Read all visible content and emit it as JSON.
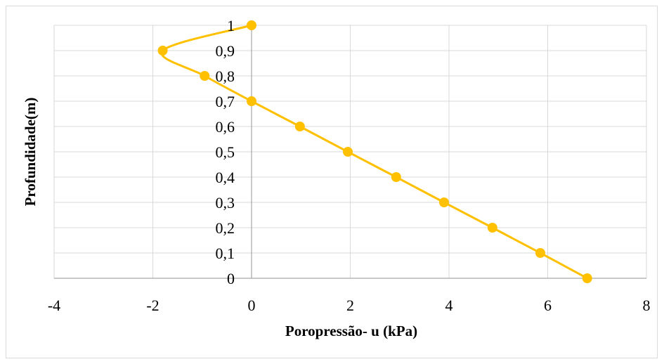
{
  "chart_data": {
    "type": "line",
    "xlabel": "Poropressão- u (kPa)",
    "ylabel": "Profundidade(m)",
    "xlim": [
      -4,
      8
    ],
    "ylim": [
      0,
      1
    ],
    "x_ticks": [
      "-4",
      "-2",
      "0",
      "2",
      "4",
      "6",
      "8"
    ],
    "y_ticks": [
      "0",
      "0,1",
      "0,2",
      "0,3",
      "0,4",
      "0,5",
      "0,6",
      "0,7",
      "0,8",
      "0,9",
      "1"
    ],
    "grid": true,
    "legend": "none",
    "series": [
      {
        "color": "#FFC000",
        "smooth": true,
        "points": [
          {
            "x": 6.8,
            "y": 0
          },
          {
            "x": 5.85,
            "y": 0.1
          },
          {
            "x": 4.88,
            "y": 0.2
          },
          {
            "x": 3.9,
            "y": 0.3
          },
          {
            "x": 2.93,
            "y": 0.4
          },
          {
            "x": 1.95,
            "y": 0.5
          },
          {
            "x": 0.98,
            "y": 0.6
          },
          {
            "x": 0,
            "y": 0.7
          },
          {
            "x": -0.95,
            "y": 0.8
          },
          {
            "x": -1.8,
            "y": 0.9
          },
          {
            "x": 0,
            "y": 1
          }
        ]
      }
    ]
  }
}
